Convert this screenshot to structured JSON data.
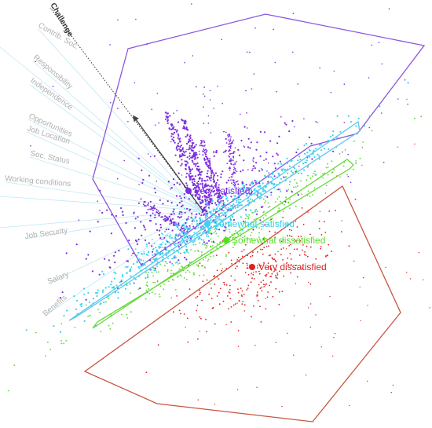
{
  "chart_data": {
    "type": "scatter",
    "description_kind": "biplot",
    "axes_visible": false,
    "grid": false,
    "variables": [
      {
        "label": "Challenge",
        "emphasis": true
      },
      {
        "label": "Contrib. Soc.",
        "emphasis": false
      },
      {
        "label": "Responsibility",
        "emphasis": false
      },
      {
        "label": "Independence",
        "emphasis": false
      },
      {
        "label": "Opportunities",
        "emphasis": false
      },
      {
        "label": "Job Location",
        "emphasis": false
      },
      {
        "label": "Soc. Status",
        "emphasis": false
      },
      {
        "label": "Working conditions",
        "emphasis": false
      },
      {
        "label": "Job Security",
        "emphasis": false
      },
      {
        "label": "Salary",
        "emphasis": false
      },
      {
        "label": "Benefits",
        "emphasis": false
      }
    ],
    "groups": [
      {
        "label": "Very satisfied",
        "color": "#7b2fe0",
        "hull_color": "#8a55e0"
      },
      {
        "label": "Somewhat satisfied",
        "color": "#3fd0f0",
        "hull_color": "#5cc8ee"
      },
      {
        "label": "Somewhat dissatisfied",
        "color": "#55dd22",
        "hull_color": "#66d83a"
      },
      {
        "label": "Very dissatisfied",
        "color": "#dd2222",
        "hull_color": "#c8553f"
      }
    ]
  }
}
